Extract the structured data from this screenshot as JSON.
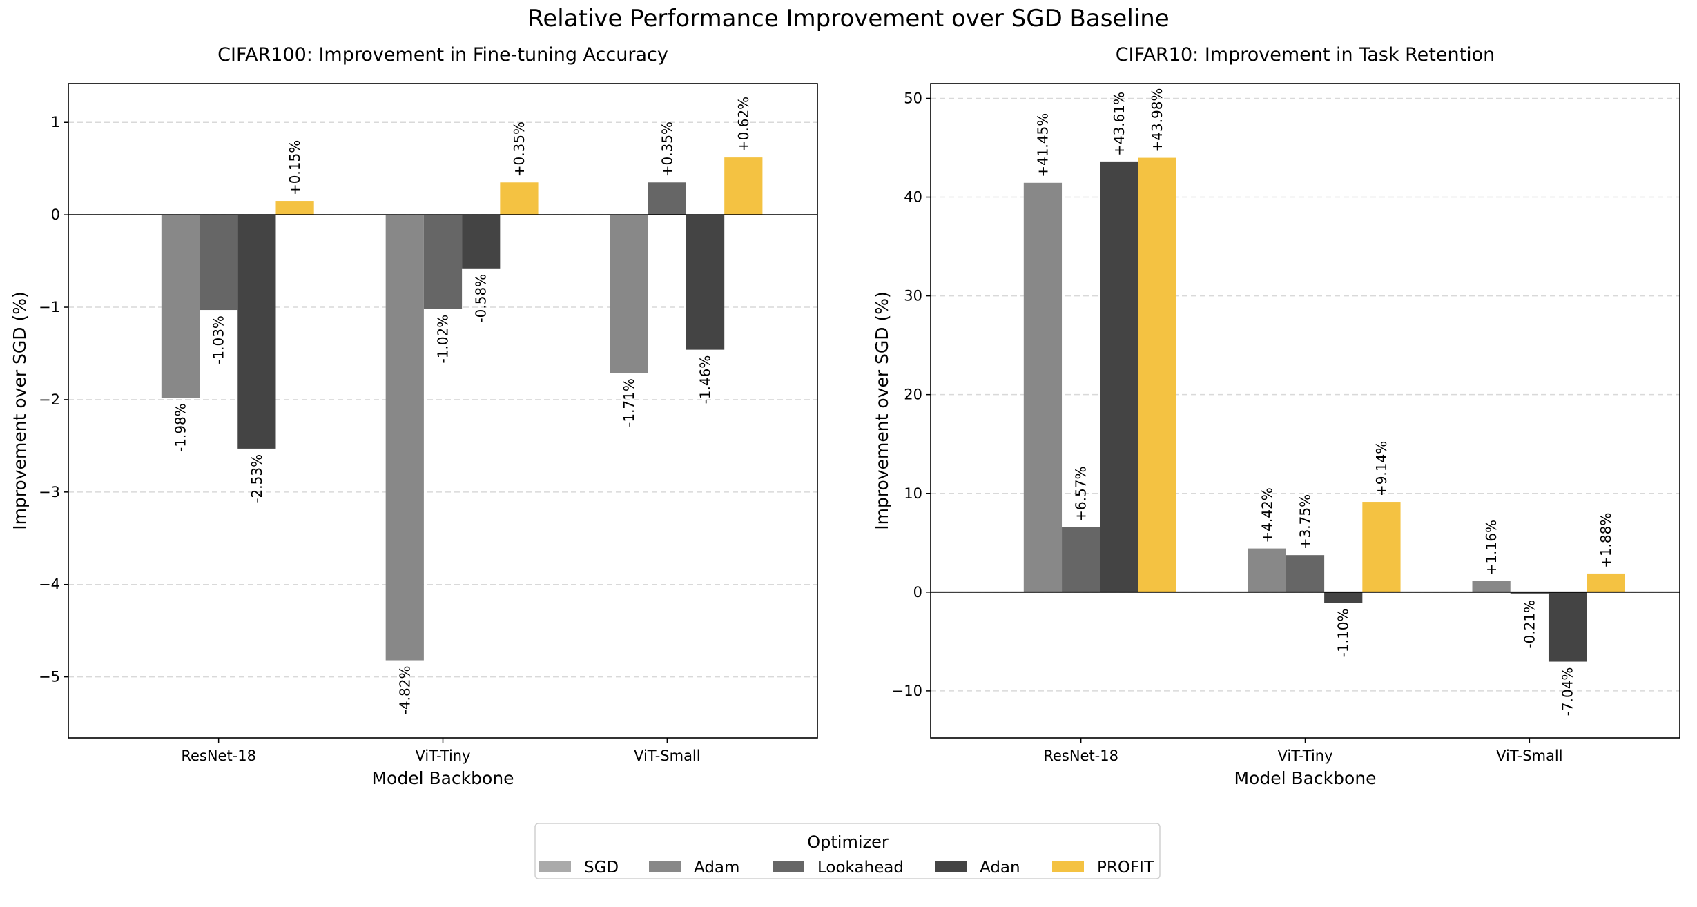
{
  "title": "Relative Performance Improvement over SGD Baseline",
  "legend": {
    "title": "Optimizer",
    "placement": "bottom-center",
    "entries": [
      {
        "name": "SGD",
        "color": "#aaaaaa"
      },
      {
        "name": "Adam",
        "color": "#888888"
      },
      {
        "name": "Lookahead",
        "color": "#666666"
      },
      {
        "name": "Adan",
        "color": "#444444"
      },
      {
        "name": "PROFIT",
        "color": "#f4c242"
      }
    ]
  },
  "chart_data": [
    {
      "type": "bar",
      "title": "CIFAR100: Improvement in Fine-tuning Accuracy",
      "xlabel": "Model Backbone",
      "ylabel": "Improvement over SGD (%)",
      "categories": [
        "ResNet-18",
        "ViT-Tiny",
        "ViT-Small"
      ],
      "ylim": [
        -5.66,
        1.42
      ],
      "yticks": [
        -5,
        -4,
        -3,
        -2,
        -1,
        0,
        1
      ],
      "grid": "y-dashed",
      "series": [
        {
          "name": "SGD",
          "values": [
            0,
            0,
            0
          ],
          "labels": [
            "",
            "",
            ""
          ]
        },
        {
          "name": "Adam",
          "values": [
            -1.98,
            -4.82,
            -1.71
          ],
          "labels": [
            "-1.98%",
            "-4.82%",
            "-1.71%"
          ]
        },
        {
          "name": "Lookahead",
          "values": [
            -1.03,
            -1.02,
            0.35
          ],
          "labels": [
            "-1.03%",
            "-1.02%",
            "+0.35%"
          ]
        },
        {
          "name": "Adan",
          "values": [
            -2.53,
            -0.58,
            -1.46
          ],
          "labels": [
            "-2.53%",
            "-0.58%",
            "-1.46%"
          ]
        },
        {
          "name": "PROFIT",
          "values": [
            0.15,
            0.35,
            0.62
          ],
          "labels": [
            "+0.15%",
            "+0.35%",
            "+0.62%"
          ]
        }
      ]
    },
    {
      "type": "bar",
      "title": "CIFAR10: Improvement in Task Retention",
      "xlabel": "Model Backbone",
      "ylabel": "Improvement over SGD (%)",
      "categories": [
        "ResNet-18",
        "ViT-Tiny",
        "ViT-Small"
      ],
      "ylim": [
        -14.76,
        51.5
      ],
      "yticks": [
        -10,
        0,
        10,
        20,
        30,
        40,
        50
      ],
      "grid": "y-dashed",
      "series": [
        {
          "name": "SGD",
          "values": [
            0,
            0,
            0
          ],
          "labels": [
            "",
            "",
            ""
          ]
        },
        {
          "name": "Adam",
          "values": [
            41.45,
            4.42,
            1.16
          ],
          "labels": [
            "+41.45%",
            "+4.42%",
            "+1.16%"
          ]
        },
        {
          "name": "Lookahead",
          "values": [
            6.57,
            3.75,
            -0.21
          ],
          "labels": [
            "+6.57%",
            "+3.75%",
            "-0.21%"
          ]
        },
        {
          "name": "Adan",
          "values": [
            43.61,
            -1.1,
            -7.04
          ],
          "labels": [
            "+43.61%",
            "-1.10%",
            "-7.04%"
          ]
        },
        {
          "name": "PROFIT",
          "values": [
            43.98,
            9.14,
            1.88
          ],
          "labels": [
            "+43.98%",
            "+9.14%",
            "+1.88%"
          ]
        }
      ]
    }
  ]
}
